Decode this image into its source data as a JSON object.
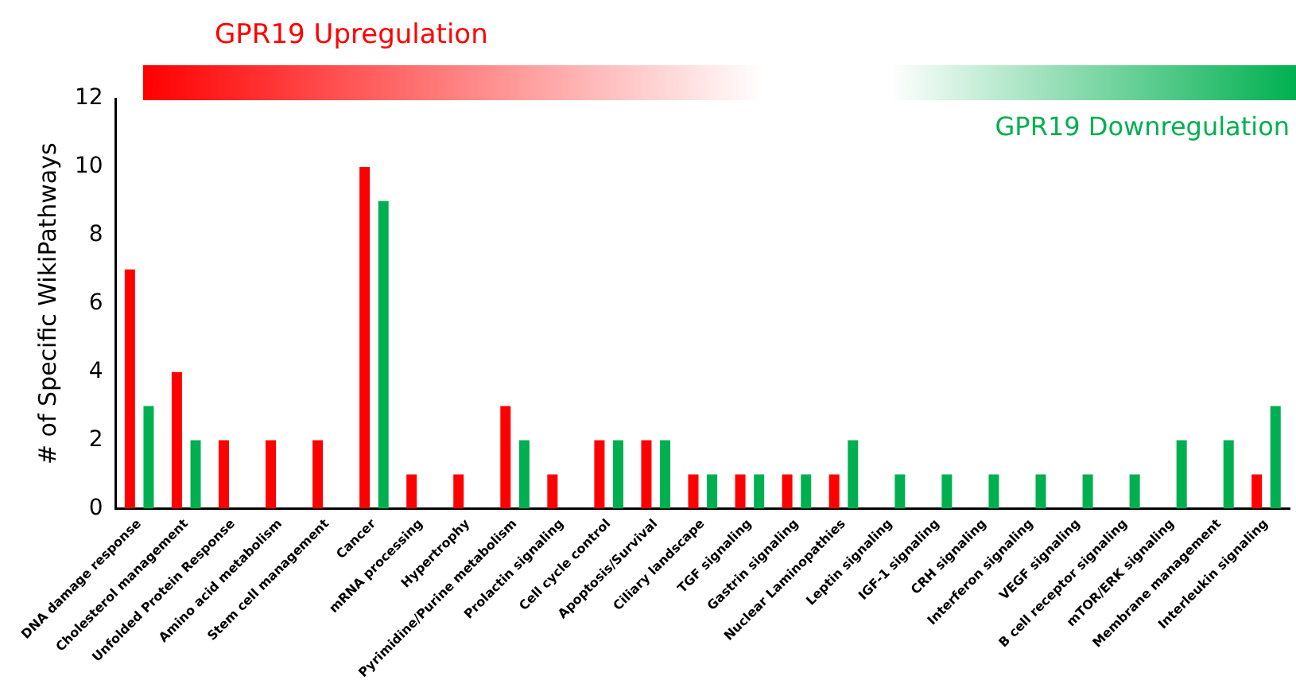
{
  "chart_data": {
    "type": "bar",
    "ylabel": "# of Specific WikiPathways",
    "categories": [
      "DNA damage response",
      "Cholesterol management",
      "Unfolded Protein Response",
      "Amino acid metabolism",
      "Stem cell management",
      "Cancer",
      "mRNA processing",
      "Hypertrophy",
      "Pyrimidine/Purine metabolism",
      "Prolactin signaling",
      "Cell cycle control",
      "Apoptosis/Survival",
      "Ciliary landscape",
      "TGF signaling",
      "Gastrin signaling",
      "Nuclear Laminopathies",
      "Leptin signaling",
      "IGF-1 signaling",
      "CRH signaling",
      "Interferon signaling",
      "VEGF signaling",
      "B cell receptor signaling",
      "mTOR/ERK signaling",
      "Membrane management",
      "Interleukin signaling"
    ],
    "series": [
      {
        "name": "GPR19 Upregulation",
        "color": "#ff0000",
        "values": [
          7,
          4,
          2,
          2,
          2,
          10,
          1,
          1,
          3,
          1,
          2,
          2,
          1,
          1,
          1,
          1,
          0,
          0,
          0,
          0,
          0,
          0,
          0,
          0,
          1
        ]
      },
      {
        "name": "GPR19 Downregulation",
        "color": "#00b050",
        "values": [
          3,
          2,
          0,
          0,
          0,
          9,
          0,
          0,
          2,
          0,
          2,
          2,
          1,
          1,
          1,
          2,
          1,
          1,
          1,
          1,
          1,
          1,
          2,
          2,
          3
        ]
      }
    ],
    "ylim": [
      0,
      12
    ],
    "yticks": [
      0,
      2,
      4,
      6,
      8,
      10,
      12
    ],
    "grid": false,
    "legend": "top"
  }
}
